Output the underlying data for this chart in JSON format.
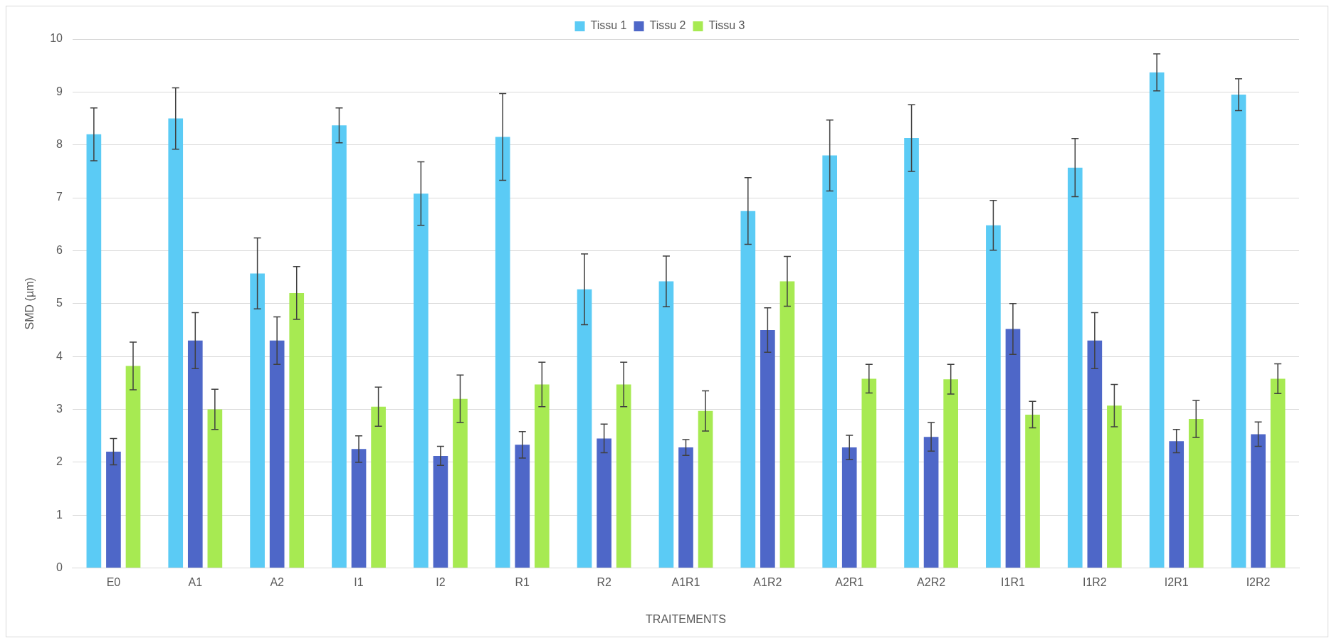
{
  "chart_data": {
    "type": "bar",
    "xlabel": "TRAITEMENTS",
    "ylabel": "SMD (µm)",
    "categories": [
      "E0",
      "A1",
      "A2",
      "I1",
      "I2",
      "R1",
      "R2",
      "A1R1",
      "A1R2",
      "A2R1",
      "A2R2",
      "I1R1",
      "I1R2",
      "I2R1",
      "I2R2"
    ],
    "series": [
      {
        "name": "Tissu 1",
        "color": "#5bcbf5",
        "values": [
          8.2,
          8.5,
          5.57,
          8.37,
          7.08,
          8.15,
          5.27,
          5.42,
          6.75,
          7.8,
          8.13,
          6.48,
          7.57,
          9.37,
          8.95
        ],
        "errors": [
          0.5,
          0.58,
          0.67,
          0.33,
          0.6,
          0.82,
          0.67,
          0.48,
          0.63,
          0.67,
          0.63,
          0.47,
          0.55,
          0.35,
          0.3
        ]
      },
      {
        "name": "Tissu 2",
        "color": "#4e67c8",
        "values": [
          2.2,
          4.3,
          4.3,
          2.25,
          2.12,
          2.33,
          2.45,
          2.28,
          4.5,
          2.28,
          2.48,
          4.52,
          4.3,
          2.4,
          2.53
        ],
        "errors": [
          0.25,
          0.53,
          0.45,
          0.25,
          0.18,
          0.25,
          0.27,
          0.15,
          0.42,
          0.23,
          0.27,
          0.48,
          0.53,
          0.22,
          0.23
        ]
      },
      {
        "name": "Tissu 3",
        "color": "#a7ea52",
        "values": [
          3.82,
          3.0,
          5.2,
          3.05,
          3.2,
          3.47,
          3.47,
          2.97,
          5.42,
          3.58,
          3.57,
          2.9,
          3.07,
          2.82,
          3.58
        ],
        "errors": [
          0.45,
          0.38,
          0.5,
          0.37,
          0.45,
          0.42,
          0.42,
          0.38,
          0.47,
          0.27,
          0.28,
          0.25,
          0.4,
          0.35,
          0.28
        ]
      }
    ],
    "ylim": [
      0,
      10
    ],
    "yticks": [
      0,
      1,
      2,
      3,
      4,
      5,
      6,
      7,
      8,
      9,
      10
    ],
    "grid": "y",
    "legend": "top"
  }
}
